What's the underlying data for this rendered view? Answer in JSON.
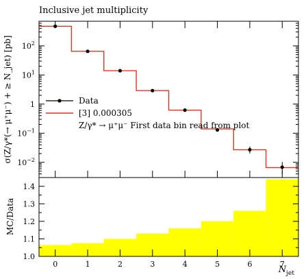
{
  "chart_data": [
    {
      "type": "line",
      "title": "Inclusive jet multiplicity",
      "ylabel": "σ(Z/γ*(→ μ⁺μ⁻) + ≥ N_jet) [pb]",
      "yscale": "log",
      "ylim": [
        0.003,
        700
      ],
      "xlim": [
        -0.5,
        7.5
      ],
      "y_ticks": [
        {
          "value": 0.01,
          "base": "10",
          "exp": "−2"
        },
        {
          "value": 0.1,
          "base": "10",
          "exp": "−1"
        },
        {
          "value": 1,
          "base": "1",
          "exp": ""
        },
        {
          "value": 10,
          "base": "10",
          "exp": "1"
        },
        {
          "value": 100,
          "base": "10",
          "exp": "2"
        }
      ],
      "legend_position": "middle-left",
      "series": [
        {
          "name": "Data",
          "color": "#000000",
          "x": [
            0,
            1,
            2,
            3,
            4,
            5,
            6,
            7
          ],
          "values": [
            470,
            65,
            14,
            2.9,
            0.62,
            0.13,
            0.027,
            0.0068
          ],
          "err_low": [
            0,
            0,
            0,
            0,
            0,
            0,
            0.007,
            0.0028
          ],
          "err_high": [
            0,
            0,
            0,
            0,
            0,
            0,
            0.008,
            0.0035
          ]
        },
        {
          "name": "[3] 0.000305",
          "color": "#e8321e",
          "x": [
            0,
            1,
            2,
            3,
            4,
            5,
            6,
            7
          ],
          "values": [
            470,
            65,
            14,
            2.9,
            0.62,
            0.14,
            0.027,
            0.0066
          ]
        }
      ],
      "note": "Z/γ* → μ⁺μ⁻ First data bin read from plot"
    },
    {
      "type": "bar",
      "ylabel": "MC/Data",
      "xlabel": "N_jet",
      "ylim": [
        1.0,
        1.45
      ],
      "y_ticks": [
        1.0,
        1.1,
        1.2,
        1.3,
        1.4
      ],
      "x_ticks": [
        0,
        1,
        2,
        3,
        4,
        5,
        6,
        7
      ],
      "band_color": "#ffff00",
      "x": [
        0,
        1,
        2,
        3,
        4,
        5,
        6,
        7
      ],
      "values": [
        1.065,
        1.075,
        1.1,
        1.13,
        1.16,
        1.2,
        1.26,
        1.44
      ]
    }
  ]
}
